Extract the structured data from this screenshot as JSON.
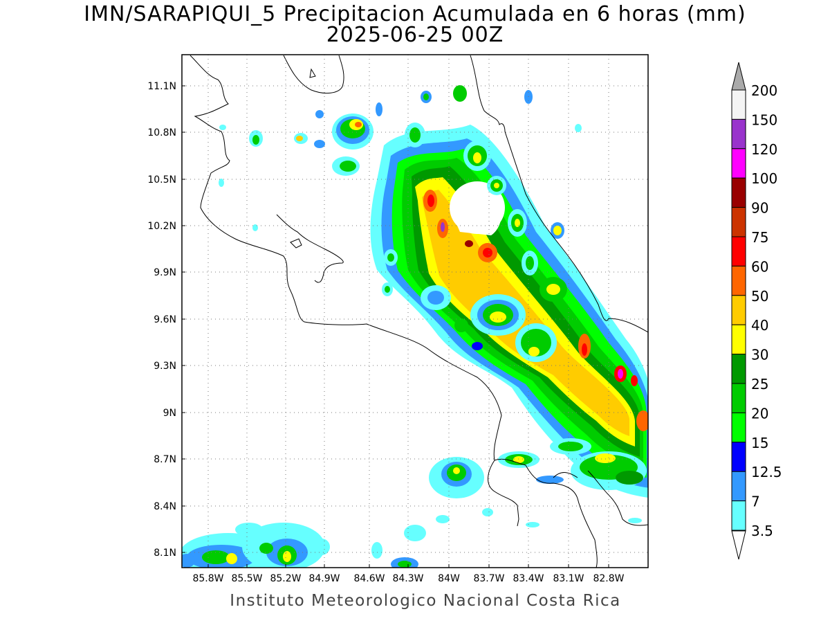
{
  "title": {
    "line1": "IMN/SARAPIQUI_5 Precipitacion Acumulada en 6 horas (mm)",
    "line2": "2025-06-25 00Z"
  },
  "footer": "Instituto Meteorologico Nacional Costa Rica",
  "map": {
    "lat_labels": [
      "11.1N",
      "10.8N",
      "10.5N",
      "10.2N",
      "9.9N",
      "9.6N",
      "9.3N",
      "9N",
      "8.7N",
      "8.4N",
      "8.1N"
    ],
    "lon_labels": [
      "85.8W",
      "85.5W",
      "85.2W",
      "84.9W",
      "84.6W",
      "84.3W",
      "84W",
      "83.7W",
      "83.4W",
      "83.1W",
      "82.8W"
    ],
    "grid": "dotted"
  },
  "colorbar": {
    "labels": [
      "200",
      "150",
      "120",
      "100",
      "90",
      "75",
      "60",
      "50",
      "40",
      "30",
      "25",
      "20",
      "15",
      "12.5",
      "7",
      "3.5"
    ],
    "colors": [
      "#f4f4f4",
      "#9933cc",
      "#ff00ff",
      "#990000",
      "#cc3300",
      "#ff0000",
      "#ff6600",
      "#ffcc00",
      "#ffff00",
      "#009900",
      "#00cc00",
      "#00ff00",
      "#0000ff",
      "#3399ff",
      "#66ffff"
    ],
    "over_color": "#aaaaaa",
    "under_color": "#ffffff"
  }
}
